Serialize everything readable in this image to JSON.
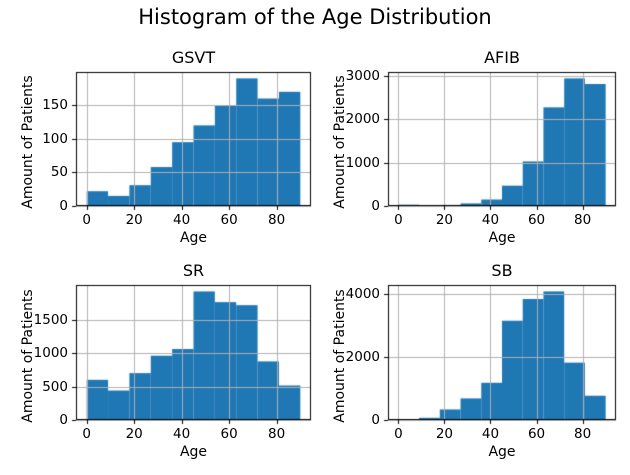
{
  "figure": {
    "title": "Histogram of the Age Distribution",
    "background": "#ffffff",
    "bar_color": "#1f77b4",
    "grid_color": "#b0b0b0",
    "spine_color": "#000000",
    "text_color": "#000000"
  },
  "chart_data": [
    {
      "type": "bar",
      "title": "GSVT",
      "xlabel": "Age",
      "ylabel": "Amount of Patients",
      "bin_edges": [
        0,
        9,
        18,
        27,
        36,
        45,
        54,
        63,
        72,
        81,
        90
      ],
      "values": [
        22,
        15,
        31,
        58,
        95,
        120,
        150,
        190,
        160,
        170
      ],
      "xticks": [
        0,
        20,
        40,
        60,
        80
      ],
      "yticks": [
        0,
        50,
        100,
        150
      ],
      "xlim": [
        -4.5,
        94.5
      ],
      "ylim": [
        0,
        199.5
      ],
      "grid": true,
      "legend": "none"
    },
    {
      "type": "bar",
      "title": "AFIB",
      "xlabel": "Age",
      "ylabel": "Amount of Patients",
      "bin_edges": [
        0,
        9,
        18,
        27,
        36,
        45,
        54,
        63,
        72,
        81,
        90
      ],
      "values": [
        30,
        5,
        25,
        60,
        150,
        470,
        1030,
        2280,
        2950,
        2820
      ],
      "xticks": [
        0,
        20,
        40,
        60,
        80
      ],
      "yticks": [
        0,
        1000,
        2000,
        3000
      ],
      "xlim": [
        -4.5,
        94.5
      ],
      "ylim": [
        0,
        3097.5
      ],
      "grid": true,
      "legend": "none"
    },
    {
      "type": "bar",
      "title": "SR",
      "xlabel": "Age",
      "ylabel": "Amount of Patients",
      "bin_edges": [
        0,
        9,
        18,
        27,
        36,
        45,
        54,
        63,
        72,
        81,
        90
      ],
      "values": [
        600,
        440,
        700,
        960,
        1060,
        1920,
        1760,
        1715,
        875,
        515
      ],
      "xticks": [
        0,
        20,
        40,
        60,
        80
      ],
      "yticks": [
        0,
        500,
        1000,
        1500
      ],
      "xlim": [
        -4.5,
        94.5
      ],
      "ylim": [
        0,
        2016
      ],
      "grid": true,
      "legend": "none"
    },
    {
      "type": "bar",
      "title": "SB",
      "xlabel": "Age",
      "ylabel": "Amount of Patients",
      "bin_edges": [
        0,
        9,
        18,
        27,
        36,
        45,
        54,
        63,
        72,
        81,
        90
      ],
      "values": [
        30,
        70,
        335,
        685,
        1180,
        3150,
        3840,
        4080,
        1820,
        770
      ],
      "xticks": [
        0,
        20,
        40,
        60,
        80
      ],
      "yticks": [
        0,
        2000,
        4000
      ],
      "xlim": [
        -4.5,
        94.5
      ],
      "ylim": [
        0,
        4284
      ],
      "grid": true,
      "legend": "none"
    }
  ]
}
